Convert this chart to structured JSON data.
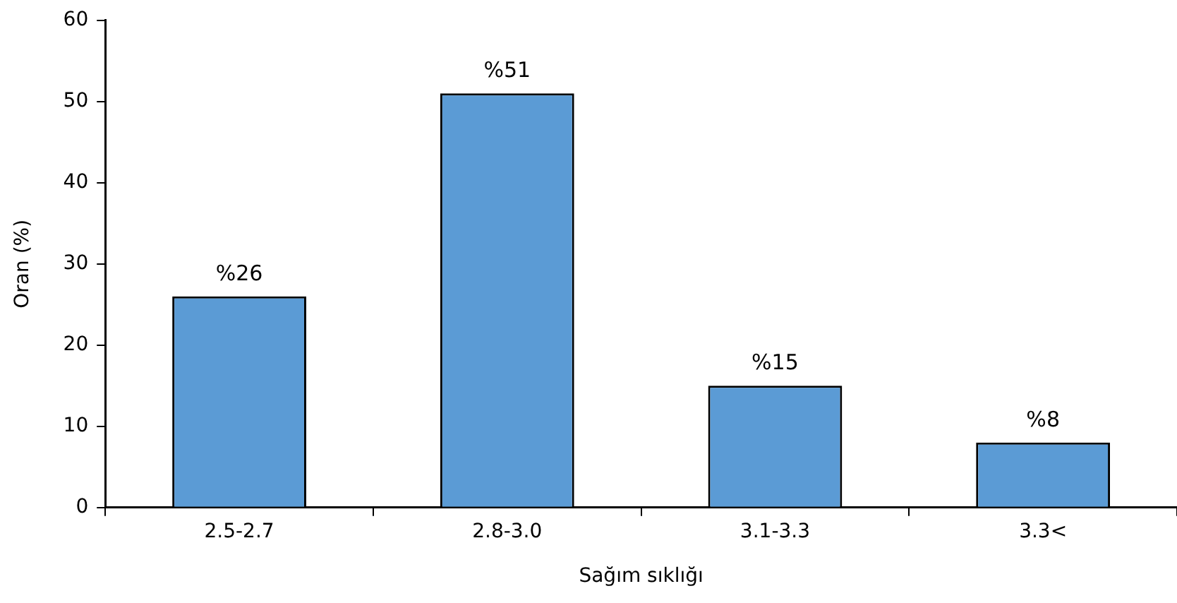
{
  "chart_data": {
    "type": "bar",
    "xlabel": "Sağım sıklığı",
    "ylabel": "Oran (%)",
    "categories": [
      "2.5-2.7",
      "2.8-3.0",
      "3.1-3.3",
      "3.3<"
    ],
    "values": [
      26,
      51,
      15,
      8
    ],
    "value_labels": [
      "%26",
      "%51",
      "%15",
      "%8"
    ],
    "color": "#5b9bd5",
    "ylim": [
      0,
      60
    ],
    "yticks": [
      0,
      10,
      20,
      30,
      40,
      50,
      60
    ],
    "grid": false,
    "legend": false
  }
}
